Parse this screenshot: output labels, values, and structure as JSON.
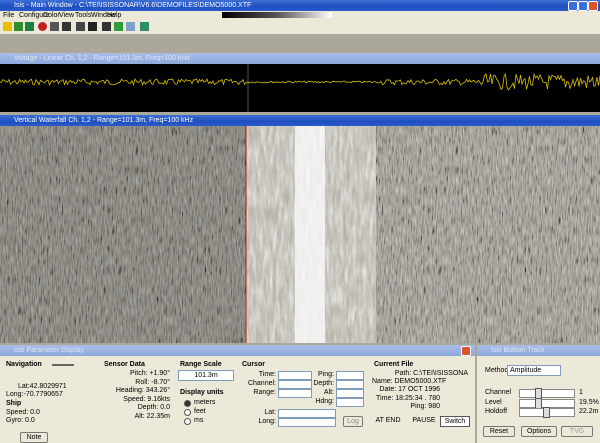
{
  "window": {
    "title": "Isis - Main Window - C:\\TEI\\ISISSONAR\\V6.6\\DEMOFILES\\DEMO5000.XTF",
    "menu": [
      "File",
      "Configure",
      "Color",
      "View",
      "Tools",
      "Window",
      "Help"
    ]
  },
  "voltage": {
    "title": "Voltage - Linear Ch. 1,2 - Range=101.3m, Freq=100 kHz"
  },
  "waterfall": {
    "title": "Vertical Waterfall Ch. 1,2 - Range=101.3m, Freq=100 kHz"
  },
  "parameters": {
    "title": "Isis Parameter Display",
    "navigation": {
      "heading": "Navigation",
      "lat": "Lat:42.8029971",
      "long": "Long:-70.7790657",
      "ship": "Ship",
      "speed": "Speed: 0.0",
      "gyro": "Gyro: 0.0",
      "note": "Note"
    },
    "sensor": {
      "heading": "Sensor Data",
      "rows": [
        "Pitch: +1.90°",
        "Roll: -8.70°",
        "Heading: 343.26°",
        "Speed: 9.16kts",
        "Depth: 0.0",
        "Alt: 22.35m"
      ]
    },
    "range": {
      "heading": "Range Scale",
      "value": "101.3m",
      "units_heading": "Display units",
      "units": [
        "meters",
        "feet",
        "ms"
      ]
    },
    "cursor": {
      "heading": "Cursor",
      "left": [
        "Time:",
        "Channel:",
        "Range:"
      ],
      "right": [
        "Ping:",
        "Depth:",
        "Alt:",
        "Hdng:"
      ],
      "lat": "Lat:",
      "long": "Long:",
      "log": "Log"
    },
    "file": {
      "heading": "Current File",
      "rows": [
        "Path: C:\\TEI\\ISISSONA",
        "Name: DEMO5000.XTF",
        "Date: 17 OCT 1996",
        "Time: 18:25:34 . 780",
        "Ping: 980"
      ],
      "buttons": [
        "AT END",
        "PAUSE",
        "Switch"
      ]
    }
  },
  "bottom_track": {
    "title": "Isis Bottom Track",
    "method_label": "Method",
    "method": "Amplitude",
    "rows": [
      {
        "label": "Channel",
        "value": "1"
      },
      {
        "label": "Level",
        "value": "19.5%"
      },
      {
        "label": "Holdoff",
        "value": "22.2m"
      }
    ],
    "buttons": [
      "Reset",
      "Options",
      "TVG"
    ]
  }
}
